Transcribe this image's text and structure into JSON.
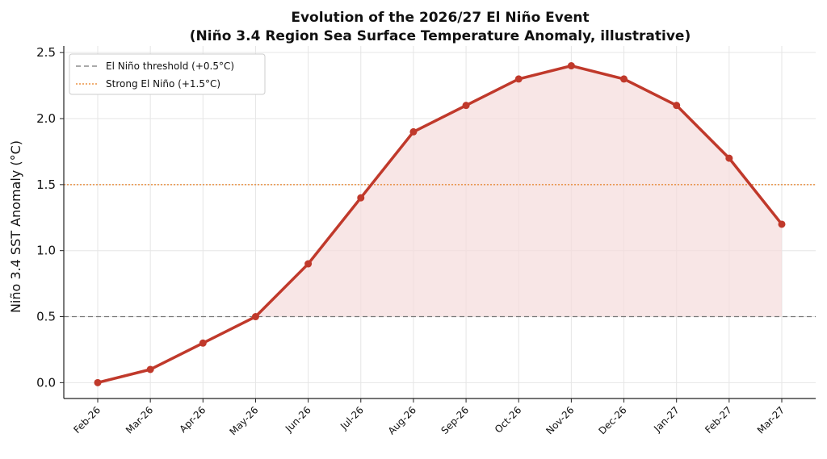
{
  "chart_data": {
    "type": "line",
    "title_line1": "Evolution of the 2026/27 El Niño Event",
    "title_line2": "(Niño 3.4 Region Sea Surface Temperature Anomaly, illustrative)",
    "xlabel": "",
    "ylabel": "Niño 3.4 SST Anomaly (°C)",
    "categories": [
      "Feb-26",
      "Mar-26",
      "Apr-26",
      "May-26",
      "Jun-26",
      "Jul-26",
      "Aug-26",
      "Sep-26",
      "Oct-26",
      "Nov-26",
      "Dec-26",
      "Jan-27",
      "Feb-27",
      "Mar-27"
    ],
    "series": [
      {
        "values": [
          0.0,
          0.1,
          0.3,
          0.5,
          0.9,
          1.4,
          1.9,
          2.1,
          2.3,
          2.4,
          2.3,
          2.1,
          1.7,
          1.2
        ],
        "color": "#c0392b",
        "fill_color": "#f5dcdc"
      }
    ],
    "ylim": [
      -0.12,
      2.55
    ],
    "yticks": [
      "0.0",
      "0.5",
      "1.0",
      "1.5",
      "2.0",
      "2.5"
    ],
    "grid": true,
    "reference_lines": [
      {
        "label": "El Niño threshold (+0.5°C)",
        "value": 0.5,
        "color": "#777777",
        "style": "dashed"
      },
      {
        "label": "Strong El Niño (+1.5°C)",
        "value": 1.5,
        "color": "#e67e22",
        "style": "dotted"
      }
    ],
    "legend_position": "top-left"
  }
}
